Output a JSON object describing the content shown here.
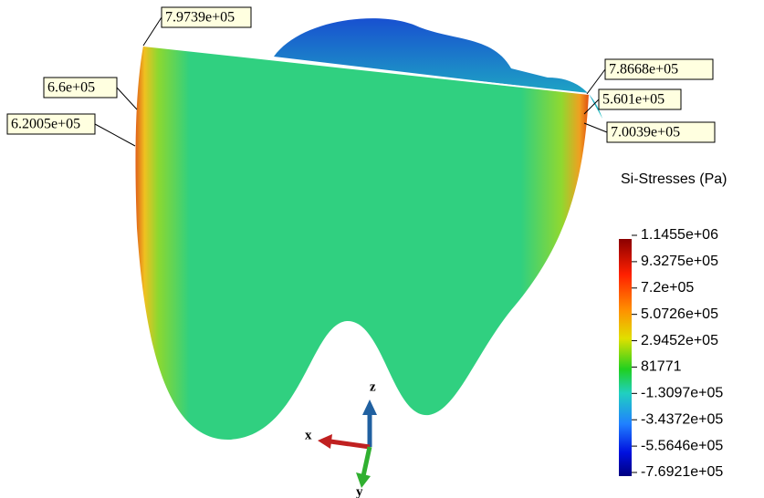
{
  "annotations": [
    {
      "label": "7.9739e+05"
    },
    {
      "label": "6.6e+05"
    },
    {
      "label": "6.2005e+05"
    },
    {
      "label": "7.8668e+05"
    },
    {
      "label": "5.601e+05"
    },
    {
      "label": "7.0039e+05"
    }
  ],
  "legend": {
    "title": "Si-Stresses (Pa)",
    "labels": [
      "1.1455e+06",
      "9.3275e+05",
      "7.2e+05",
      "5.0726e+05",
      "2.9452e+05",
      "81771",
      "-1.3097e+05",
      "-3.4372e+05",
      "-5.5646e+05",
      "-7.6921e+05"
    ]
  },
  "axes": {
    "x": "x",
    "y": "y",
    "z": "z"
  }
}
